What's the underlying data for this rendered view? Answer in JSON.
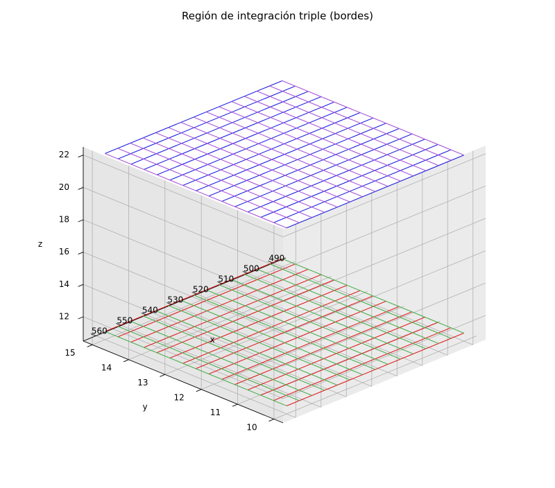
{
  "chart_data": {
    "type": "surface-wireframe-3d",
    "title": "Región de integración triple (bordes)",
    "xlabel": "x",
    "ylabel": "y",
    "zlabel": "z",
    "x_ticks": [
      490,
      500,
      510,
      520,
      530,
      540,
      550,
      560
    ],
    "y_ticks": [
      10,
      11,
      12,
      13,
      14,
      15
    ],
    "z_ticks": [
      12,
      14,
      16,
      18,
      20,
      22
    ],
    "xlim": [
      485,
      565
    ],
    "ylim": [
      9.75,
      15.25
    ],
    "zlim": [
      10.5,
      22.5
    ],
    "x_range": [
      490,
      560
    ],
    "y_range": [
      10,
      15
    ],
    "z_bottom": 11,
    "z_top": 22,
    "grid": true,
    "surfaces": [
      {
        "name": "",
        "z": 22,
        "lines_along_x_color": "#1f1fe0",
        "lines_along_y_color": "#a855d8"
      },
      {
        "name": "",
        "z": 11,
        "lines_along_x_color": "#e02020",
        "lines_along_y_color": "#4caf50"
      }
    ],
    "grid_lines_per_direction": 15
  }
}
